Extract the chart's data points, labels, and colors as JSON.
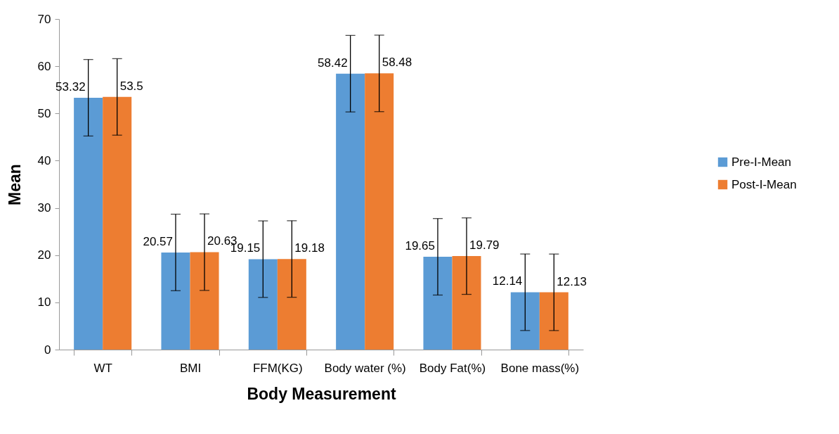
{
  "chart_data": {
    "type": "bar",
    "xlabel": "Body Measurement",
    "ylabel": "Mean",
    "categories": [
      "WT",
      "BMI",
      "FFM(KG)",
      "Body water (%)",
      "Body Fat(%)",
      "Bone mass(%)"
    ],
    "series": [
      {
        "name": "Pre-I-Mean",
        "color": "#5b9bd5",
        "values": [
          53.32,
          20.57,
          19.15,
          58.42,
          19.65,
          12.14
        ],
        "errors": [
          8.1,
          8.1,
          8.1,
          8.1,
          8.1,
          8.1
        ]
      },
      {
        "name": "Post-I-Mean",
        "color": "#ed7d31",
        "values": [
          53.5,
          20.63,
          19.18,
          58.48,
          19.79,
          12.13
        ],
        "errors": [
          8.1,
          8.1,
          8.1,
          8.1,
          8.1,
          8.1
        ]
      }
    ],
    "ylim": [
      0,
      70
    ],
    "yticks": [
      0,
      10,
      20,
      30,
      40,
      50,
      60,
      70
    ],
    "grid": false,
    "legend": "right",
    "data_labels": true
  }
}
